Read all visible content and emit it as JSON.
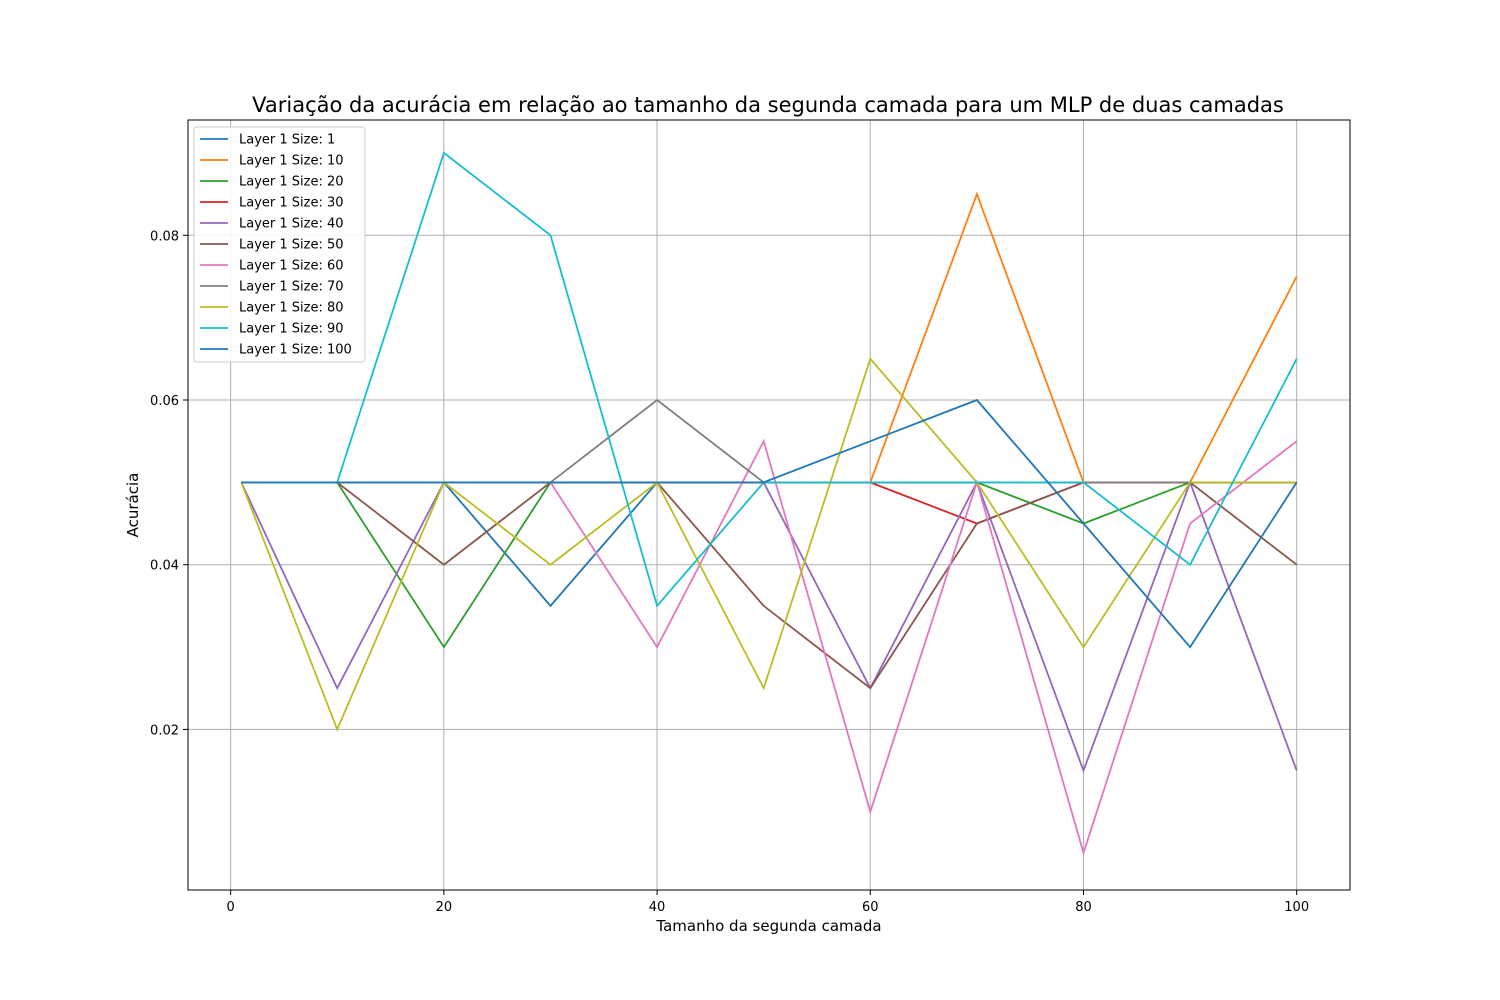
{
  "chart_data": {
    "type": "line",
    "title": "Variação da acurácia em relação ao tamanho da segunda camada para um MLP de duas camadas",
    "xlabel": "Tamanho da segunda camada",
    "ylabel": "Acurácia",
    "x": [
      1,
      10,
      20,
      30,
      40,
      50,
      60,
      70,
      80,
      90,
      100
    ],
    "xlim": [
      -4,
      105
    ],
    "ylim": [
      0.0005,
      0.094
    ],
    "xticks": [
      0,
      20,
      40,
      60,
      80,
      100
    ],
    "yticks": [
      0.02,
      0.04,
      0.06,
      0.08
    ],
    "xtick_labels": [
      "0",
      "20",
      "40",
      "60",
      "80",
      "100"
    ],
    "ytick_labels": [
      "0.02",
      "0.04",
      "0.06",
      "0.08"
    ],
    "grid": true,
    "legend_position": "top-left",
    "series": [
      {
        "name": "Layer 1 Size: 1",
        "color": "#1f77b4",
        "values": [
          0.05,
          0.05,
          0.05,
          0.035,
          0.05,
          0.05,
          0.05,
          0.05,
          0.05,
          0.05,
          0.05
        ]
      },
      {
        "name": "Layer 1 Size: 10",
        "color": "#ff7f0e",
        "values": [
          0.05,
          0.05,
          0.05,
          0.05,
          0.05,
          0.05,
          0.05,
          0.085,
          0.05,
          0.05,
          0.075
        ]
      },
      {
        "name": "Layer 1 Size: 20",
        "color": "#2ca02c",
        "values": [
          0.05,
          0.05,
          0.03,
          0.05,
          0.05,
          0.05,
          0.05,
          0.05,
          0.045,
          0.05,
          0.05
        ]
      },
      {
        "name": "Layer 1 Size: 30",
        "color": "#d62728",
        "values": [
          0.05,
          0.05,
          0.05,
          0.05,
          0.05,
          0.05,
          0.05,
          0.045,
          0.05,
          0.05,
          0.05
        ]
      },
      {
        "name": "Layer 1 Size: 40",
        "color": "#9467bd",
        "values": [
          0.05,
          0.025,
          0.05,
          0.05,
          0.05,
          0.05,
          0.025,
          0.05,
          0.015,
          0.05,
          0.015
        ]
      },
      {
        "name": "Layer 1 Size: 50",
        "color": "#8c564b",
        "values": [
          0.05,
          0.05,
          0.04,
          0.05,
          0.05,
          0.035,
          0.025,
          0.045,
          0.05,
          0.05,
          0.04
        ]
      },
      {
        "name": "Layer 1 Size: 60",
        "color": "#e377c2",
        "values": [
          0.05,
          0.05,
          0.05,
          0.05,
          0.03,
          0.055,
          0.01,
          0.05,
          0.005,
          0.045,
          0.055
        ]
      },
      {
        "name": "Layer 1 Size: 70",
        "color": "#7f7f7f",
        "values": [
          0.05,
          0.05,
          0.05,
          0.05,
          0.06,
          0.05,
          0.05,
          0.05,
          0.05,
          0.05,
          0.05
        ]
      },
      {
        "name": "Layer 1 Size: 80",
        "color": "#bcbd22",
        "values": [
          0.05,
          0.02,
          0.05,
          0.04,
          0.05,
          0.025,
          0.065,
          0.05,
          0.03,
          0.05,
          0.05
        ]
      },
      {
        "name": "Layer 1 Size: 90",
        "color": "#17becf",
        "values": [
          0.05,
          0.05,
          0.09,
          0.08,
          0.035,
          0.05,
          0.05,
          0.05,
          0.05,
          0.04,
          0.065
        ]
      },
      {
        "name": "Layer 1 Size: 100",
        "color": "#1f77b4",
        "values": [
          0.05,
          0.05,
          0.05,
          0.05,
          0.05,
          0.05,
          0.055,
          0.06,
          0.045,
          0.03,
          0.05
        ]
      }
    ]
  }
}
